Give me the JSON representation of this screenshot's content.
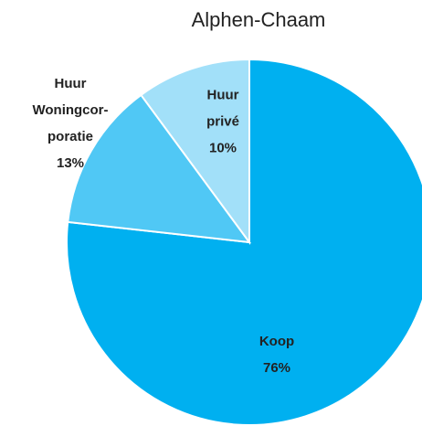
{
  "chart_data": {
    "type": "pie",
    "title": "Alphen-Chaam",
    "categories": [
      "Koop",
      "Huur\nWoningcor-\nporatie",
      "Huur\nprivé"
    ],
    "values": [
      76,
      13,
      10
    ],
    "value_labels": [
      "76%",
      "13%",
      "10%"
    ],
    "colors": [
      "#00b0f0",
      "#50c8f5",
      "#a2e0f9"
    ]
  }
}
